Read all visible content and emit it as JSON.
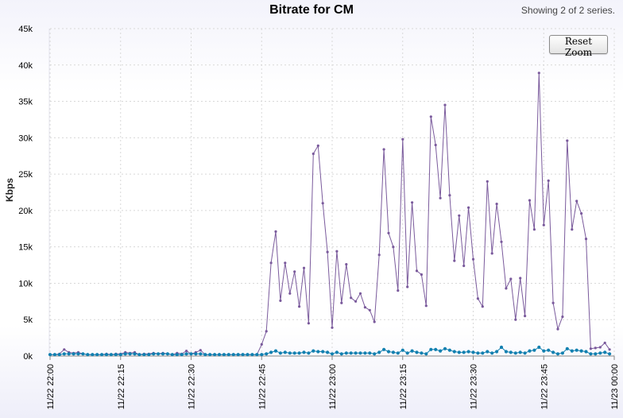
{
  "chart_data": {
    "type": "line",
    "title": "Bitrate for CM",
    "subtitle": "Showing 2 of 2 series.",
    "ylabel": "Kbps",
    "xlabel": "",
    "ylim": [
      0,
      45000
    ],
    "y_ticks": [
      0,
      5000,
      10000,
      15000,
      20000,
      25000,
      30000,
      35000,
      40000,
      45000
    ],
    "y_tick_labels": [
      "0k",
      "5k",
      "10k",
      "15k",
      "20k",
      "25k",
      "30k",
      "35k",
      "40k",
      "45k"
    ],
    "xlim_minutes": [
      0,
      120
    ],
    "x_tick_labels": [
      "11/22 22:00",
      "11/22 22:15",
      "11/22 22:30",
      "11/22 22:45",
      "11/22 23:00",
      "11/22 23:15",
      "11/22 23:30",
      "11/22 23:45",
      "11/23 00:00"
    ],
    "grid": true,
    "x_interval_minutes": 1,
    "series": [
      {
        "color": "#7a5a9c",
        "values": [
          200,
          200,
          300,
          900,
          500,
          400,
          500,
          300,
          200,
          200,
          200,
          200,
          300,
          200,
          300,
          300,
          500,
          400,
          500,
          200,
          300,
          300,
          400,
          300,
          400,
          300,
          200,
          400,
          300,
          700,
          300,
          500,
          800,
          200,
          200,
          200,
          200,
          200,
          200,
          200,
          200,
          200,
          200,
          200,
          200,
          1600,
          3400,
          12800,
          17100,
          7600,
          12800,
          8600,
          11600,
          6800,
          12100,
          4500,
          27800,
          28900,
          21000,
          14300,
          3900,
          14400,
          7300,
          12600,
          8000,
          7500,
          8600,
          6700,
          6300,
          4700,
          13900,
          28400,
          16900,
          15000,
          9000,
          29800,
          9500,
          21100,
          11700,
          11200,
          6900,
          32900,
          29000,
          21700,
          34500,
          22100,
          13100,
          19300,
          12400,
          20400,
          13300,
          7900,
          6800,
          24000,
          14100,
          20900,
          15700,
          9300,
          10600,
          5000,
          10700,
          5500,
          21400,
          17400,
          38900,
          18000,
          24100,
          7300,
          3700,
          5400,
          29600,
          17400,
          21300,
          19600,
          16100,
          1000,
          1100,
          1200,
          1800,
          900
        ]
      },
      {
        "color": "#1280b0",
        "values": [
          200,
          200,
          200,
          300,
          300,
          300,
          300,
          300,
          200,
          200,
          200,
          200,
          200,
          200,
          200,
          200,
          300,
          300,
          300,
          200,
          200,
          200,
          300,
          300,
          300,
          300,
          200,
          200,
          200,
          300,
          300,
          300,
          300,
          200,
          200,
          200,
          200,
          200,
          200,
          200,
          200,
          200,
          200,
          200,
          200,
          200,
          300,
          500,
          700,
          400,
          500,
          400,
          400,
          400,
          500,
          400,
          700,
          600,
          600,
          500,
          300,
          500,
          300,
          400,
          400,
          400,
          400,
          400,
          400,
          300,
          500,
          900,
          600,
          500,
          400,
          800,
          400,
          700,
          500,
          400,
          300,
          900,
          900,
          700,
          1000,
          800,
          600,
          500,
          500,
          600,
          500,
          400,
          400,
          600,
          400,
          600,
          1200,
          600,
          500,
          400,
          500,
          400,
          700,
          800,
          1200,
          700,
          800,
          500,
          300,
          400,
          1000,
          700,
          800,
          700,
          600,
          300,
          300,
          400,
          500,
          300
        ]
      }
    ]
  },
  "ui": {
    "reset_zoom_label": "Reset Zoom"
  }
}
